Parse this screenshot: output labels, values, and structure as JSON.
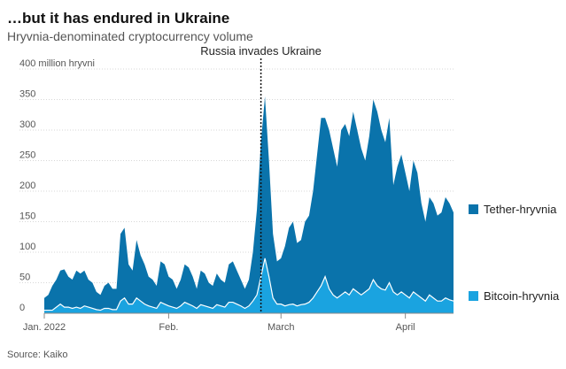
{
  "chart_data": {
    "type": "area",
    "title": "…but it has endured in Ukraine",
    "subtitle": "Hryvnia-denominated cryptocurrency volume",
    "ylabel_unit": "million hryvni",
    "ylim": [
      0,
      400
    ],
    "y_ticks": [
      0,
      50,
      100,
      150,
      200,
      250,
      300,
      350,
      400
    ],
    "y_top_label": "400 million hryvni",
    "x_day_range": [
      1,
      103
    ],
    "x_ticks": [
      {
        "label": "Jan. 2022",
        "day": 1
      },
      {
        "label": "Feb.",
        "day": 32
      },
      {
        "label": "March",
        "day": 60
      },
      {
        "label": "April",
        "day": 91
      }
    ],
    "annotation": {
      "text": "Russia invades Ukraine",
      "day": 55
    },
    "source": "Source: Kaiko",
    "colors": {
      "tether": "#0a73ab",
      "bitcoin": "#1aa3e0",
      "bitcoin_line": "#ffffff",
      "grid": "#d7d7d7",
      "axis": "#888888"
    },
    "series": [
      {
        "name": "Tether-hryvnia",
        "color": "#0a73ab",
        "values": [
          25,
          30,
          45,
          55,
          70,
          72,
          60,
          55,
          70,
          65,
          70,
          55,
          50,
          35,
          30,
          45,
          50,
          40,
          40,
          130,
          140,
          80,
          70,
          120,
          95,
          80,
          60,
          55,
          45,
          85,
          80,
          60,
          55,
          40,
          55,
          80,
          75,
          60,
          40,
          70,
          65,
          50,
          45,
          65,
          55,
          50,
          80,
          85,
          70,
          55,
          40,
          55,
          100,
          170,
          280,
          355,
          250,
          130,
          85,
          90,
          110,
          140,
          150,
          115,
          120,
          150,
          160,
          200,
          260,
          320,
          320,
          300,
          270,
          240,
          300,
          310,
          290,
          330,
          300,
          270,
          250,
          290,
          350,
          330,
          300,
          280,
          320,
          210,
          240,
          260,
          230,
          200,
          250,
          230,
          180,
          150,
          190,
          180,
          160,
          165,
          190,
          180,
          165
        ]
      },
      {
        "name": "Bitcoin-hryvnia",
        "color": "#1aa3e0",
        "values": [
          5,
          5,
          5,
          10,
          15,
          10,
          10,
          8,
          10,
          8,
          12,
          10,
          8,
          6,
          5,
          8,
          8,
          6,
          6,
          20,
          25,
          15,
          15,
          25,
          20,
          15,
          12,
          10,
          8,
          18,
          15,
          12,
          10,
          8,
          12,
          18,
          15,
          12,
          8,
          14,
          12,
          10,
          8,
          14,
          12,
          10,
          18,
          18,
          15,
          12,
          8,
          12,
          20,
          30,
          60,
          90,
          60,
          25,
          15,
          15,
          12,
          14,
          15,
          12,
          14,
          15,
          18,
          25,
          35,
          45,
          60,
          40,
          30,
          25,
          30,
          35,
          30,
          40,
          35,
          30,
          35,
          40,
          55,
          45,
          40,
          38,
          50,
          35,
          30,
          35,
          30,
          25,
          35,
          30,
          25,
          20,
          30,
          25,
          20,
          20,
          25,
          22,
          20
        ]
      }
    ]
  }
}
